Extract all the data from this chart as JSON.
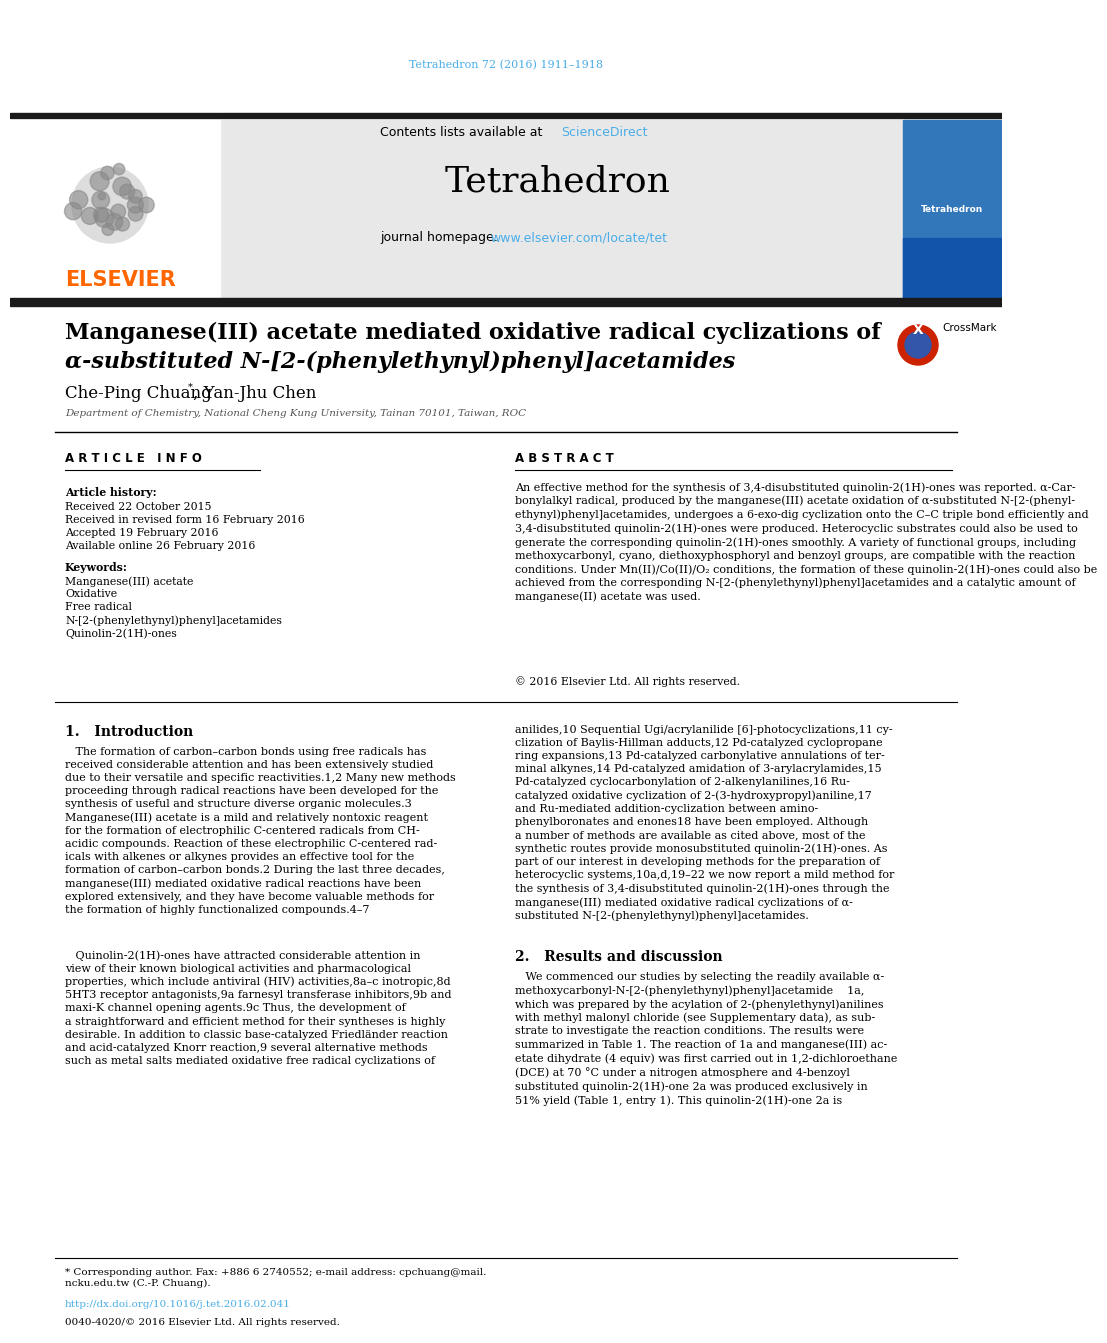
{
  "page_bg": "#ffffff",
  "top_citation": "Tetrahedron 72 (2016) 1911–1918",
  "top_citation_color": "#4AADE8",
  "journal_name": "Tetrahedron",
  "header_bg": "#e8e8e8",
  "contents_text": "Contents lists available at ",
  "sciencedirect_text": "ScienceDirect",
  "sciencedirect_color": "#4AADE8",
  "homepage_text": "journal homepage: ",
  "homepage_url": "www.elsevier.com/locate/tet",
  "homepage_url_color": "#4AADE8",
  "elsevier_color": "#FF6600",
  "title_line1": "Manganese(III) acetate mediated oxidative radical cyclizations of",
  "title_line2": "α-substituted N-[2-(phenylethynyl)phenyl]acetamides",
  "authors": "Che-Ping Chuang",
  "authors2": ", Yan-Jhu Chen",
  "affiliation": "Department of Chemistry, National Cheng Kung University, Tainan 70101, Taiwan, ROC",
  "article_info_header": "A R T I C L E   I N F O",
  "abstract_header": "A B S T R A C T",
  "article_history_label": "Article history:",
  "received1": "Received 22 October 2015",
  "received2": "Received in revised form 16 February 2016",
  "accepted": "Accepted 19 February 2016",
  "available": "Available online 26 February 2016",
  "keywords_label": "Keywords:",
  "kw1": "Manganese(III) acetate",
  "kw2": "Oxidative",
  "kw3": "Free radical",
  "kw4": "N-[2-(phenylethynyl)phenyl]acetamides",
  "kw5": "Quinolin-2(1H)-ones",
  "abstract_text": "An effective method for the synthesis of 3,4-disubstituted quinolin-2(1H)-ones was reported. α-Car-\nbonylalkyl radical, produced by the manganese(III) acetate oxidation of α-substituted N-[2-(phenyl-\nethynyl)phenyl]acetamides, undergoes a 6-exo-dig cyclization onto the C–C triple bond efficiently and\n3,4-disubstituted quinolin-2(1H)-ones were produced. Heterocyclic substrates could also be used to\ngenerate the corresponding quinolin-2(1H)-ones smoothly. A variety of functional groups, including\nmethoxycarbonyl, cyano, diethoxyphosphoryl and benzoyl groups, are compatible with the reaction\nconditions. Under Mn(II)/Co(II)/O₂ conditions, the formation of these quinolin-2(1H)-ones could also be\nachieved from the corresponding N-[2-(phenylethynyl)phenyl]acetamides and a catalytic amount of\nmanganese(II) acetate was used.",
  "copyright": "© 2016 Elsevier Ltd. All rights reserved.",
  "intro_header": "1.   Introduction",
  "results_header": "2.   Results and discussion",
  "footer_note": "* Corresponding author. Fax: +886 6 2740552; e-mail address: cpchuang@mail.\nncku.edu.tw (C.-P. Chuang).",
  "footer_doi": "http://dx.doi.org/10.1016/j.tet.2016.02.041",
  "footer_issn": "0040-4020/© 2016 Elsevier Ltd. All rights reserved.",
  "text_color": "#000000",
  "gray_text": "#555555"
}
